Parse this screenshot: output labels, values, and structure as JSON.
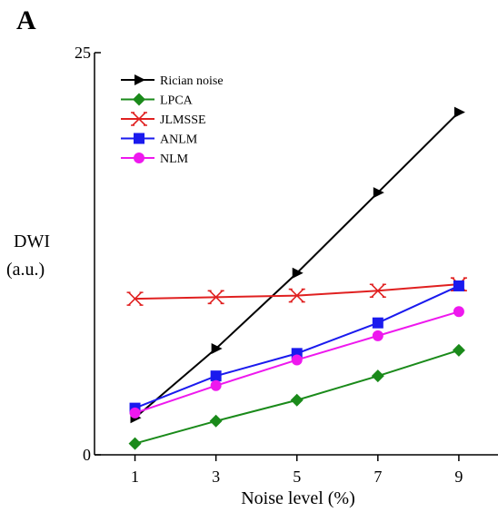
{
  "chart_data": {
    "type": "line",
    "panel_label": "A",
    "xlabel": "Noise level (%)",
    "ylabel_line1": "DWI",
    "ylabel_line2": "(a.u.)",
    "x": [
      1,
      3,
      5,
      7,
      9
    ],
    "x_ticks": [
      "1",
      "3",
      "5",
      "7",
      "9"
    ],
    "y_ticks": [
      "0",
      "25"
    ],
    "xlim": [
      0,
      9.9
    ],
    "ylim": [
      0,
      25
    ],
    "grid": false,
    "legend_position": "top-left",
    "series": [
      {
        "name": "Rician noise",
        "values": [
          2.3,
          6.6,
          11.3,
          16.3,
          21.3
        ],
        "color": "#000000",
        "marker": "triangle-right"
      },
      {
        "name": "LPCA",
        "values": [
          0.7,
          2.1,
          3.4,
          4.9,
          6.5
        ],
        "color": "#1a8a1a",
        "marker": "diamond"
      },
      {
        "name": "JLMSSE",
        "values": [
          9.7,
          9.8,
          9.9,
          10.2,
          10.6
        ],
        "color": "#e02020",
        "marker": "x-bar"
      },
      {
        "name": "ANLM",
        "values": [
          2.9,
          4.9,
          6.3,
          8.2,
          10.5
        ],
        "color": "#1a1aee",
        "marker": "square"
      },
      {
        "name": "NLM",
        "values": [
          2.6,
          4.3,
          5.9,
          7.4,
          8.9
        ],
        "color": "#ee18ee",
        "marker": "circle"
      }
    ]
  }
}
